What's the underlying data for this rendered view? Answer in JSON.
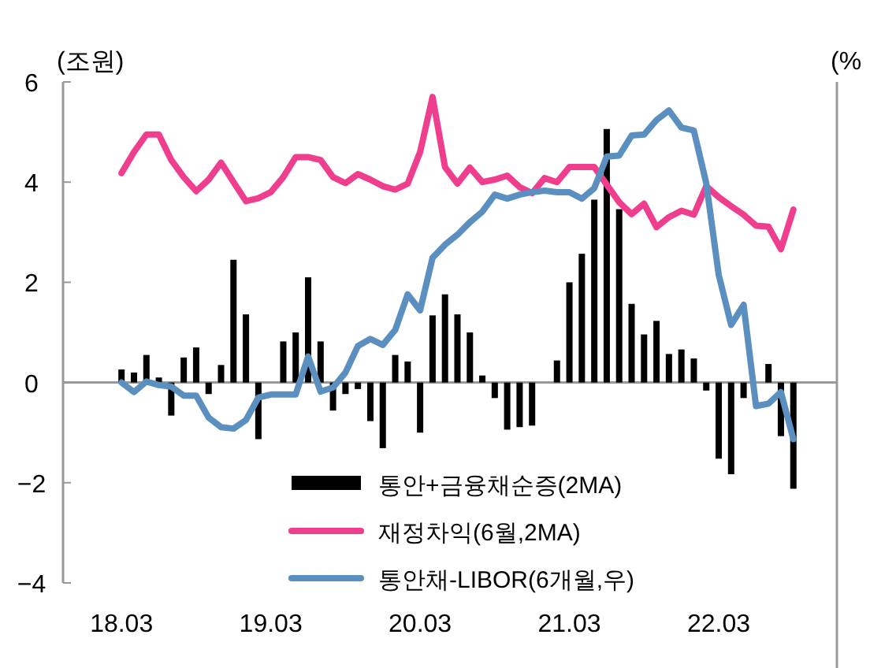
{
  "chart_data": {
    "type": "bar",
    "ylabel": "(조원)",
    "y2label": "(%",
    "categories": [
      "18.03",
      null,
      null,
      null,
      null,
      null,
      null,
      null,
      null,
      null,
      null,
      null,
      "19.03",
      null,
      null,
      null,
      null,
      null,
      null,
      null,
      null,
      null,
      null,
      null,
      "20.03",
      null,
      null,
      null,
      null,
      null,
      null,
      null,
      null,
      null,
      null,
      null,
      "21.03",
      null,
      null,
      null,
      null,
      null,
      null,
      null,
      null,
      null,
      null,
      null,
      "22.03",
      null,
      null,
      null,
      null,
      null,
      null
    ],
    "ylim": [
      -4,
      6
    ],
    "yticks": [
      {
        "value": -4,
        "label": "−4"
      },
      {
        "value": -2,
        "label": "−2"
      },
      0,
      2,
      4,
      6
    ],
    "legend": "bottom",
    "series": [
      {
        "name": "통안+금융채순증(2MA)",
        "color": "#000000",
        "values": [
          0.26,
          0.2,
          0.55,
          0.1,
          -0.66,
          0.5,
          0.7,
          -0.23,
          0.35,
          2.45,
          1.36,
          -1.13,
          0,
          0.82,
          1.0,
          2.1,
          0.82,
          -0.56,
          -0.23,
          -0.13,
          -0.77,
          -1.31,
          0.55,
          0.42,
          -1.0,
          1.34,
          1.76,
          1.36,
          1.0,
          0.14,
          -0.31,
          -0.94,
          -0.89,
          -0.86,
          0,
          0.44,
          2.0,
          2.57,
          3.65,
          5.06,
          3.46,
          1.57,
          0.96,
          1.23,
          0.57,
          0.66,
          0.48,
          -0.16,
          -1.52,
          -1.83,
          -0.31,
          0,
          0.37,
          -1.07,
          -2.12
        ]
      },
      {
        "name": "재정차익(6월,2MA)",
        "type": "line",
        "color": "#ef3e8e",
        "values": [
          4.18,
          4.6,
          4.95,
          4.95,
          4.44,
          4.1,
          3.82,
          4.05,
          4.39,
          4.0,
          3.62,
          3.68,
          3.8,
          4.1,
          4.5,
          4.5,
          4.44,
          4.1,
          3.98,
          4.16,
          4.05,
          3.92,
          3.85,
          3.97,
          4.6,
          5.7,
          4.3,
          3.97,
          4.29,
          4.0,
          4.05,
          4.13,
          3.9,
          3.78,
          4.08,
          4.0,
          4.3,
          4.3,
          4.3,
          3.95,
          3.6,
          3.36,
          3.57,
          3.1,
          3.3,
          3.43,
          3.35,
          3.92,
          3.7,
          3.52,
          3.35,
          3.13,
          3.11,
          2.66,
          3.45
        ]
      },
      {
        "name": "통안채-LIBOR(6개월,우)",
        "type": "line",
        "color": "#5b8fc0",
        "values": [
          0,
          -0.19,
          0.02,
          -0.05,
          -0.08,
          -0.26,
          -0.26,
          -0.7,
          -0.89,
          -0.92,
          -0.75,
          -0.3,
          -0.24,
          -0.24,
          -0.24,
          0.52,
          -0.18,
          -0.1,
          0.2,
          0.73,
          0.87,
          0.75,
          1.05,
          1.76,
          1.44,
          2.49,
          2.75,
          2.95,
          3.2,
          3.41,
          3.75,
          3.67,
          3.75,
          3.8,
          3.83,
          3.8,
          3.8,
          3.67,
          3.88,
          4.51,
          4.53,
          4.93,
          4.95,
          5.24,
          5.43,
          5.09,
          5.03,
          3.98,
          2.15,
          1.15,
          1.55,
          -0.47,
          -0.42,
          -0.19,
          -1.13
        ]
      }
    ]
  }
}
